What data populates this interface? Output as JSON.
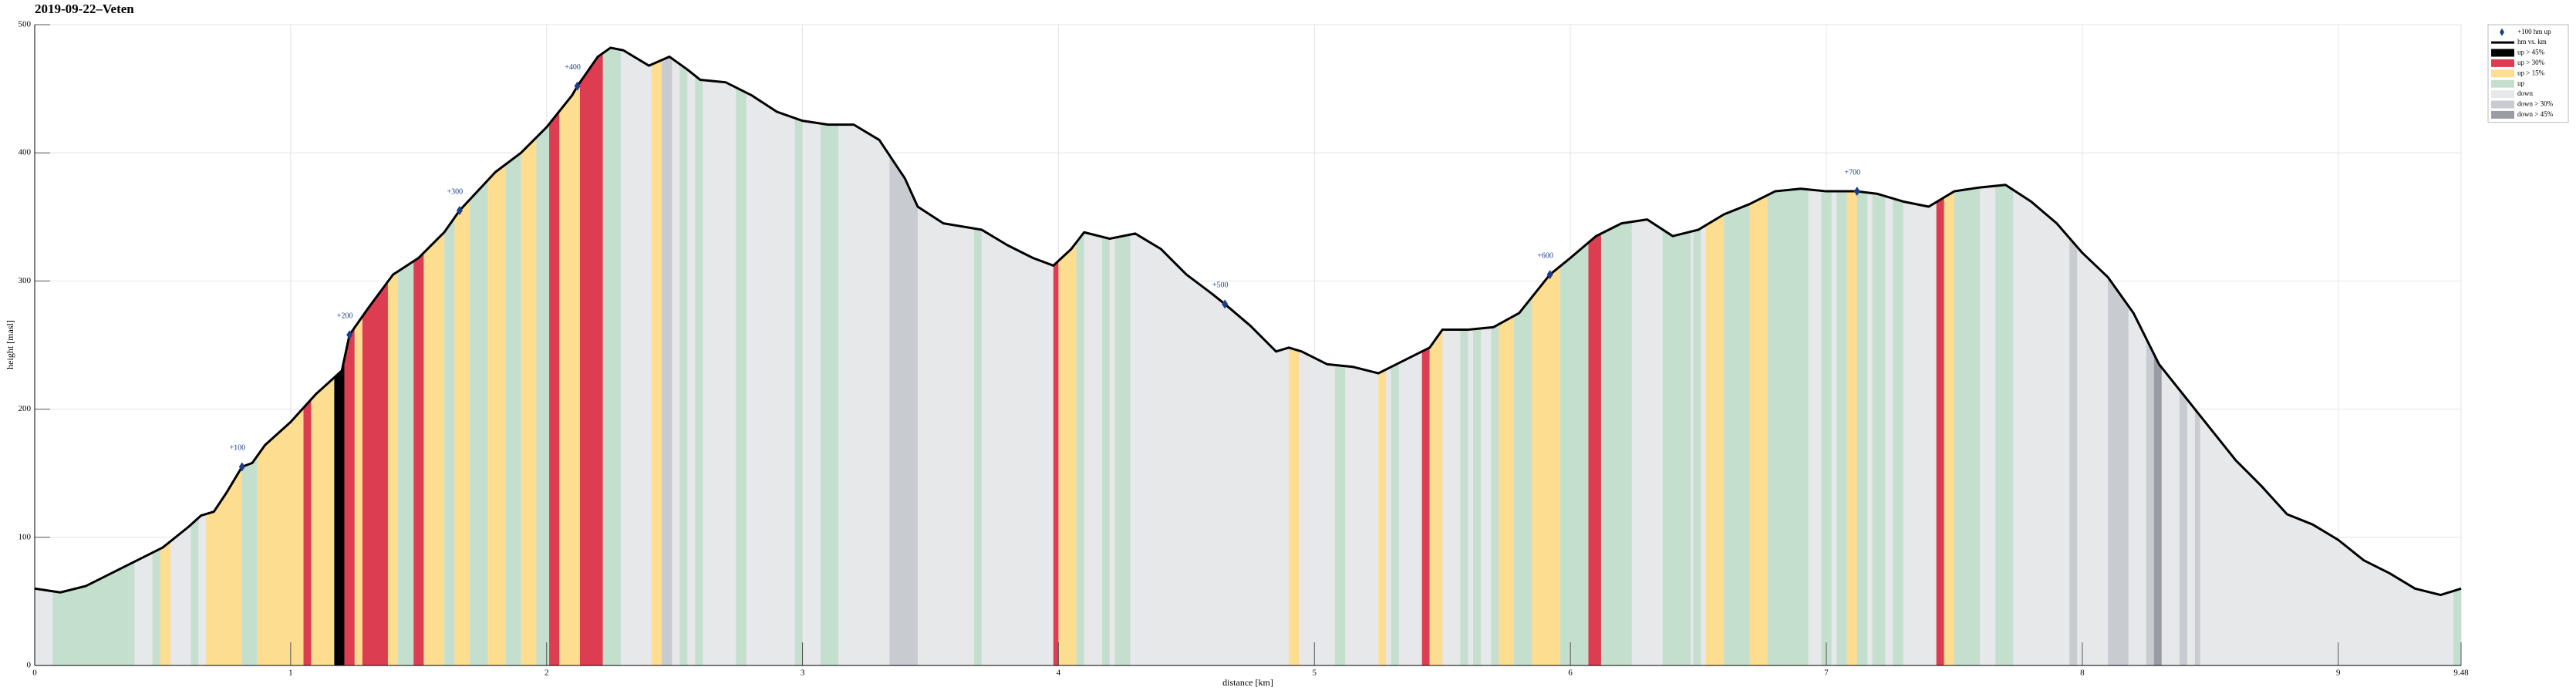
{
  "chart_data": {
    "type": "elevation",
    "title": "2019-09-22–Veten",
    "x_label": "distance [km]",
    "y_label": "height [masl]",
    "xlim": [
      0,
      9.48
    ],
    "ylim": [
      0,
      500
    ],
    "xticks": [
      0,
      1,
      2,
      3,
      4,
      5,
      6,
      7,
      8,
      9,
      9.48
    ],
    "yticks": [
      0,
      100,
      200,
      300,
      400,
      500
    ],
    "grid": true,
    "x": [
      0,
      0.1,
      0.2,
      0.3,
      0.4,
      0.5,
      0.6,
      0.65,
      0.7,
      0.75,
      0.81,
      0.85,
      0.9,
      1.0,
      1.1,
      1.2,
      1.23,
      1.3,
      1.4,
      1.5,
      1.6,
      1.66,
      1.8,
      1.9,
      2.0,
      2.1,
      2.12,
      2.2,
      2.25,
      2.3,
      2.4,
      2.48,
      2.55,
      2.6,
      2.7,
      2.8,
      2.9,
      3.0,
      3.1,
      3.2,
      3.3,
      3.4,
      3.45,
      3.55,
      3.7,
      3.8,
      3.9,
      3.98,
      4.05,
      4.1,
      4.2,
      4.3,
      4.4,
      4.5,
      4.6,
      4.65,
      4.75,
      4.85,
      4.9,
      4.95,
      5.05,
      5.15,
      5.25,
      5.35,
      5.45,
      5.5,
      5.6,
      5.7,
      5.8,
      5.92,
      6.0,
      6.1,
      6.2,
      6.3,
      6.4,
      6.5,
      6.6,
      6.7,
      6.8,
      6.9,
      7.0,
      7.12,
      7.2,
      7.3,
      7.4,
      7.5,
      7.6,
      7.7,
      7.8,
      7.9,
      8.0,
      8.1,
      8.2,
      8.3,
      8.4,
      8.5,
      8.6,
      8.7,
      8.8,
      8.9,
      9.0,
      9.1,
      9.2,
      9.3,
      9.4,
      9.48
    ],
    "series": [
      {
        "name": "hm vs. km",
        "color": "#000000",
        "values": [
          60,
          57,
          62,
          72,
          82,
          92,
          108,
          117,
          120,
          135,
          155,
          158,
          172,
          190,
          212,
          230,
          258,
          278,
          305,
          318,
          338,
          355,
          385,
          400,
          420,
          445,
          452,
          475,
          482,
          480,
          468,
          475,
          465,
          457,
          455,
          445,
          432,
          425,
          422,
          422,
          410,
          380,
          358,
          345,
          340,
          328,
          318,
          312,
          325,
          338,
          333,
          337,
          325,
          305,
          290,
          282,
          265,
          245,
          248,
          245,
          235,
          233,
          228,
          238,
          248,
          262,
          262,
          264,
          275,
          305,
          318,
          335,
          345,
          348,
          335,
          340,
          352,
          360,
          370,
          372,
          370,
          370,
          368,
          362,
          358,
          370,
          373,
          375,
          362,
          345,
          322,
          303,
          275,
          235,
          210,
          185,
          160,
          140,
          118,
          110,
          98,
          82,
          72,
          60,
          55,
          60
        ]
      }
    ],
    "milestones": {
      "name": "+100 hm up",
      "color": "#1f3c88",
      "points": [
        {
          "x": 0.81,
          "y": 155,
          "label": "+100"
        },
        {
          "x": 1.23,
          "y": 258,
          "label": "+200"
        },
        {
          "x": 1.66,
          "y": 355,
          "label": "+300"
        },
        {
          "x": 2.12,
          "y": 452,
          "label": "+400"
        },
        {
          "x": 4.65,
          "y": 282,
          "label": "+500"
        },
        {
          "x": 5.92,
          "y": 305,
          "label": "+600"
        },
        {
          "x": 7.12,
          "y": 370,
          "label": "+700"
        }
      ]
    },
    "fills": [
      {
        "name": "up > 45%",
        "color": "#000000",
        "ranges": [
          [
            1.17,
            1.21
          ]
        ]
      },
      {
        "name": "up > 30%",
        "color": "#dc3d50",
        "ranges": [
          [
            1.05,
            1.08
          ],
          [
            1.21,
            1.25
          ],
          [
            1.28,
            1.38
          ],
          [
            1.48,
            1.52
          ],
          [
            2.01,
            2.05
          ],
          [
            2.13,
            2.22
          ],
          [
            3.98,
            4.0
          ],
          [
            5.42,
            5.45
          ],
          [
            6.07,
            6.12
          ],
          [
            7.43,
            7.46
          ]
        ]
      },
      {
        "name": "up > 15%",
        "color": "#fddd8f",
        "ranges": [
          [
            0.49,
            0.53
          ],
          [
            0.67,
            0.81
          ],
          [
            0.87,
            1.05
          ],
          [
            1.08,
            1.17
          ],
          [
            1.25,
            1.28
          ],
          [
            1.38,
            1.42
          ],
          [
            1.52,
            1.6
          ],
          [
            1.64,
            1.7
          ],
          [
            1.77,
            1.84
          ],
          [
            1.9,
            1.96
          ],
          [
            2.05,
            2.13
          ],
          [
            2.41,
            2.45
          ],
          [
            4.0,
            4.07
          ],
          [
            4.9,
            4.94
          ],
          [
            5.25,
            5.28
          ],
          [
            5.45,
            5.5
          ],
          [
            5.72,
            5.78
          ],
          [
            5.85,
            5.96
          ],
          [
            6.53,
            6.6
          ],
          [
            6.7,
            6.77
          ],
          [
            7.08,
            7.12
          ],
          [
            7.46,
            7.5
          ]
        ]
      },
      {
        "name": "up",
        "color": "#c5dfcf",
        "ranges": [
          [
            0.07,
            0.39
          ],
          [
            0.46,
            0.49
          ],
          [
            0.61,
            0.64
          ],
          [
            0.81,
            0.87
          ],
          [
            1.42,
            1.48
          ],
          [
            1.6,
            1.64
          ],
          [
            1.7,
            1.77
          ],
          [
            1.84,
            1.9
          ],
          [
            1.96,
            2.01
          ],
          [
            2.22,
            2.29
          ],
          [
            2.52,
            2.55
          ],
          [
            2.58,
            2.61
          ],
          [
            2.74,
            2.78
          ],
          [
            2.97,
            3.0
          ],
          [
            3.07,
            3.14
          ],
          [
            3.67,
            3.7
          ],
          [
            4.07,
            4.1
          ],
          [
            4.17,
            4.2
          ],
          [
            4.22,
            4.28
          ],
          [
            5.08,
            5.12
          ],
          [
            5.3,
            5.33
          ],
          [
            5.57,
            5.6
          ],
          [
            5.62,
            5.65
          ],
          [
            5.69,
            5.72
          ],
          [
            5.78,
            5.85
          ],
          [
            5.96,
            6.07
          ],
          [
            6.12,
            6.24
          ],
          [
            6.36,
            6.47
          ],
          [
            6.48,
            6.51
          ],
          [
            6.6,
            6.7
          ],
          [
            6.77,
            6.93
          ],
          [
            6.98,
            7.02
          ],
          [
            7.04,
            7.08
          ],
          [
            7.12,
            7.16
          ],
          [
            7.18,
            7.23
          ],
          [
            7.26,
            7.3
          ],
          [
            7.5,
            7.6
          ],
          [
            7.66,
            7.73
          ],
          [
            9.45,
            9.48
          ]
        ]
      },
      {
        "name": "down",
        "color": "#e6e8ea",
        "base": true
      },
      {
        "name": "down > 30%",
        "color": "#c8cbd0",
        "ranges": [
          [
            2.45,
            2.49
          ],
          [
            3.34,
            3.45
          ],
          [
            7.95,
            7.98
          ],
          [
            8.1,
            8.18
          ],
          [
            8.25,
            8.28
          ],
          [
            8.38,
            8.41
          ],
          [
            8.44,
            8.46
          ]
        ]
      },
      {
        "name": "down > 45%",
        "color": "#9a9ca3",
        "ranges": [
          [
            8.28,
            8.31
          ]
        ]
      }
    ]
  }
}
